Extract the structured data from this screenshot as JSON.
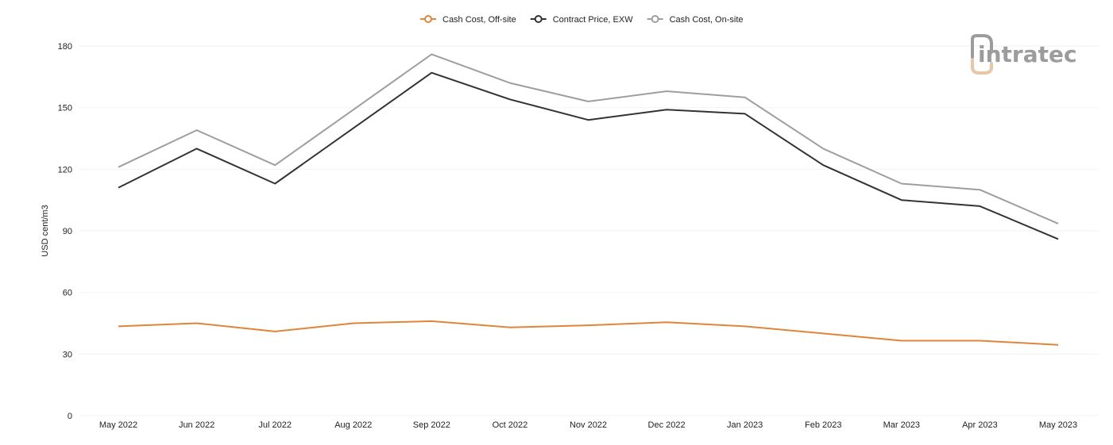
{
  "chart_data": {
    "type": "line",
    "categories": [
      "May 2022",
      "Jun 2022",
      "Jul 2022",
      "Aug 2022",
      "Sep 2022",
      "Oct 2022",
      "Nov 2022",
      "Dec 2022",
      "Jan 2023",
      "Feb 2023",
      "Mar 2023",
      "Apr 2023",
      "May 2023"
    ],
    "series": [
      {
        "name": "Cash Cost, Off-site",
        "color": "#e0843a",
        "values": [
          43.5,
          45,
          41,
          45,
          46,
          43,
          44,
          45.5,
          43.5,
          40,
          36.5,
          36.5,
          34.5
        ]
      },
      {
        "name": "Contract Price, EXW",
        "color": "#333333",
        "values": [
          111,
          130,
          113,
          140,
          167,
          154,
          144,
          149,
          147,
          122,
          105,
          102,
          86
        ]
      },
      {
        "name": "Cash Cost, On-site",
        "color": "#9e9e9e",
        "values": [
          121,
          139,
          122,
          149,
          176,
          162,
          153,
          158,
          155,
          130,
          113,
          110,
          93.5
        ]
      }
    ],
    "ylabel": "USD cent/m3",
    "xlabel": "",
    "ylim": [
      0,
      180
    ],
    "yticks": [
      0,
      30,
      60,
      90,
      120,
      150,
      180
    ],
    "grid": true,
    "legend_position": "top-center"
  },
  "logo": {
    "text": "intratec",
    "colors": [
      "#9c9c9c",
      "#e6c7a8"
    ]
  }
}
